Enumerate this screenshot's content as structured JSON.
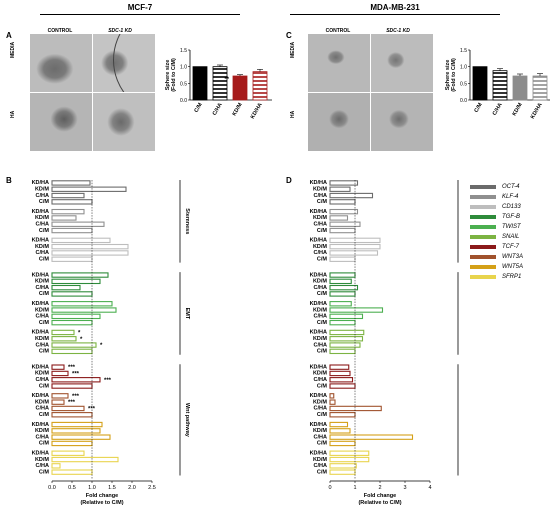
{
  "headers": {
    "left": "MCF-7",
    "right": "MDA-MB-231"
  },
  "panels": {
    "a": "A",
    "b": "B",
    "c": "C",
    "d": "D"
  },
  "micrographs": {
    "col_control": "CONTROL",
    "col_kd": "SDC-1 KD",
    "row_media": "MEDIA",
    "row_ha": "HA"
  },
  "colors": {
    "OCT-4": "#6b6b6b",
    "KLF-4": "#8f8f8f",
    "CD133": "#bdbdbd",
    "TGF-B": "#2e8b3a",
    "TWIST": "#4caf50",
    "SNAIL": "#7cb342",
    "TCF-7": "#8b1a1a",
    "WNT3A": "#a0522d",
    "WNT5A": "#d4a017",
    "SFRP1": "#e8d44d",
    "kd": "#a61b1b",
    "mda_kd": "#8c8c8c"
  },
  "legend": [
    {
      "key": "OCT-4",
      "label": "OCT-4"
    },
    {
      "key": "KLF-4",
      "label": "KLF-4"
    },
    {
      "key": "CD133",
      "label": "CD133"
    },
    {
      "key": "TGF-B",
      "label": "TGF-B"
    },
    {
      "key": "TWIST",
      "label": "TWIST"
    },
    {
      "key": "SNAIL",
      "label": "SNAIL"
    },
    {
      "key": "TCF-7",
      "label": "TCF-7"
    },
    {
      "key": "WNT3A",
      "label": "WNT3A"
    },
    {
      "key": "WNT5A",
      "label": "WNT5A"
    },
    {
      "key": "SFRP1",
      "label": "SFRP1"
    }
  ],
  "chart_data": [
    {
      "id": "A-bar",
      "type": "bar",
      "categories": [
        "C/M",
        "C/HA",
        "KD/M",
        "KD/HA"
      ],
      "values": [
        1.0,
        1.0,
        0.72,
        0.85
      ],
      "errors": [
        0.0,
        0.05,
        0.04,
        0.07
      ],
      "styles": [
        "solid-black",
        "hatch-black",
        "solid-kd",
        "hatch-kd"
      ],
      "annotations": [
        {
          "category": "KD/M",
          "text": "**"
        }
      ],
      "ylabel": "Sphere size\n(Fold to C/M)",
      "ylim": [
        0.0,
        1.5
      ],
      "yticks": [
        "0.0",
        "0.5",
        "1.0",
        "1.5"
      ]
    },
    {
      "id": "C-bar",
      "type": "bar",
      "categories": [
        "C/M",
        "C/HA",
        "KD/M",
        "KD/HA"
      ],
      "values": [
        1.0,
        0.88,
        0.72,
        0.72
      ],
      "errors": [
        0.0,
        0.06,
        0.06,
        0.07
      ],
      "styles": [
        "solid-black",
        "hatch-black",
        "solid-grey",
        "hatch-grey"
      ],
      "annotations": [],
      "ylabel": "Sphere size\n(Fold to C/M)",
      "ylim": [
        0.0,
        1.5
      ],
      "yticks": [
        "0.0",
        "0.5",
        "1.0",
        "1.5"
      ]
    },
    {
      "id": "B-fold",
      "type": "bar",
      "orientation": "horizontal",
      "conditions": [
        "KD/HA",
        "KD/M",
        "C/HA",
        "C/M"
      ],
      "xlabel": "Fold change\n(Relative to C/M)",
      "xlim": [
        0.0,
        2.5
      ],
      "xticks": [
        "0.0",
        "0.5",
        "1.0",
        "1.5",
        "2.0",
        "2.5"
      ],
      "groups": [
        {
          "label": "Stemness",
          "genes": [
            "OCT-4",
            "KLF-4",
            "CD133"
          ]
        },
        {
          "label": "EMT",
          "genes": [
            "TGF-B",
            "TWIST",
            "SNAIL"
          ]
        },
        {
          "label": "Wnt pathway",
          "genes": [
            "TCF-7",
            "WNT3A",
            "WNT5A",
            "SFRP1"
          ]
        }
      ],
      "values": {
        "OCT-4": [
          0.95,
          1.85,
          0.8,
          1.0
        ],
        "KLF-4": [
          0.8,
          0.6,
          1.3,
          1.0
        ],
        "CD133": [
          1.45,
          1.9,
          1.9,
          1.0
        ],
        "TGF-B": [
          1.4,
          1.2,
          0.7,
          1.0
        ],
        "TWIST": [
          1.5,
          1.6,
          1.2,
          1.0
        ],
        "SNAIL": [
          0.55,
          0.6,
          1.1,
          1.0
        ],
        "TCF-7": [
          0.3,
          0.4,
          1.2,
          1.0
        ],
        "WNT3A": [
          0.4,
          0.3,
          0.8,
          1.0
        ],
        "WNT5A": [
          1.25,
          1.2,
          1.45,
          1.0
        ],
        "SFRP1": [
          0.8,
          1.65,
          0.2,
          1.0
        ]
      },
      "annotations": [
        {
          "gene": "SNAIL",
          "condition": "KD/HA",
          "text": "*"
        },
        {
          "gene": "SNAIL",
          "condition": "KD/M",
          "text": "*"
        },
        {
          "gene": "SNAIL",
          "condition": "C/HA",
          "text": "*"
        },
        {
          "gene": "TCF-7",
          "condition": "KD/HA",
          "text": "***"
        },
        {
          "gene": "TCF-7",
          "condition": "KD/M",
          "text": "***"
        },
        {
          "gene": "TCF-7",
          "condition": "C/HA",
          "text": "***"
        },
        {
          "gene": "WNT3A",
          "condition": "KD/HA",
          "text": "***"
        },
        {
          "gene": "WNT3A",
          "condition": "KD/M",
          "text": "***"
        },
        {
          "gene": "WNT3A",
          "condition": "C/HA",
          "text": "***"
        }
      ]
    },
    {
      "id": "D-fold",
      "type": "bar",
      "orientation": "horizontal",
      "conditions": [
        "KD/HA",
        "KD/M",
        "C/HA",
        "C/M"
      ],
      "xlabel": "Fold change\n(Relative to C/M)",
      "xlim": [
        0,
        4
      ],
      "xticks": [
        "0",
        "1",
        "2",
        "3",
        "4"
      ],
      "groups": [
        {
          "label": "Stemness",
          "genes": [
            "OCT-4",
            "KLF-4",
            "CD133"
          ]
        },
        {
          "label": "EMT",
          "genes": [
            "TGF-B",
            "TWIST",
            "SNAIL"
          ]
        },
        {
          "label": "Wnt pathway",
          "genes": [
            "TCF-7",
            "WNT3A",
            "WNT5A",
            "SFRP1"
          ]
        }
      ],
      "values": {
        "OCT-4": [
          1.1,
          0.8,
          1.7,
          1.0
        ],
        "KLF-4": [
          1.1,
          0.7,
          1.2,
          1.0
        ],
        "CD133": [
          2.0,
          2.0,
          1.9,
          1.0
        ],
        "TGF-B": [
          1.0,
          0.85,
          1.1,
          1.0
        ],
        "TWIST": [
          0.85,
          2.1,
          1.3,
          1.0
        ],
        "SNAIL": [
          1.35,
          1.3,
          1.2,
          1.0
        ],
        "TCF-7": [
          0.75,
          0.8,
          0.9,
          1.0
        ],
        "WNT3A": [
          0.15,
          0.2,
          2.05,
          1.0
        ],
        "WNT5A": [
          0.7,
          0.8,
          3.3,
          1.0
        ],
        "SFRP1": [
          1.55,
          1.55,
          1.05,
          1.0
        ]
      },
      "annotations": []
    }
  ]
}
